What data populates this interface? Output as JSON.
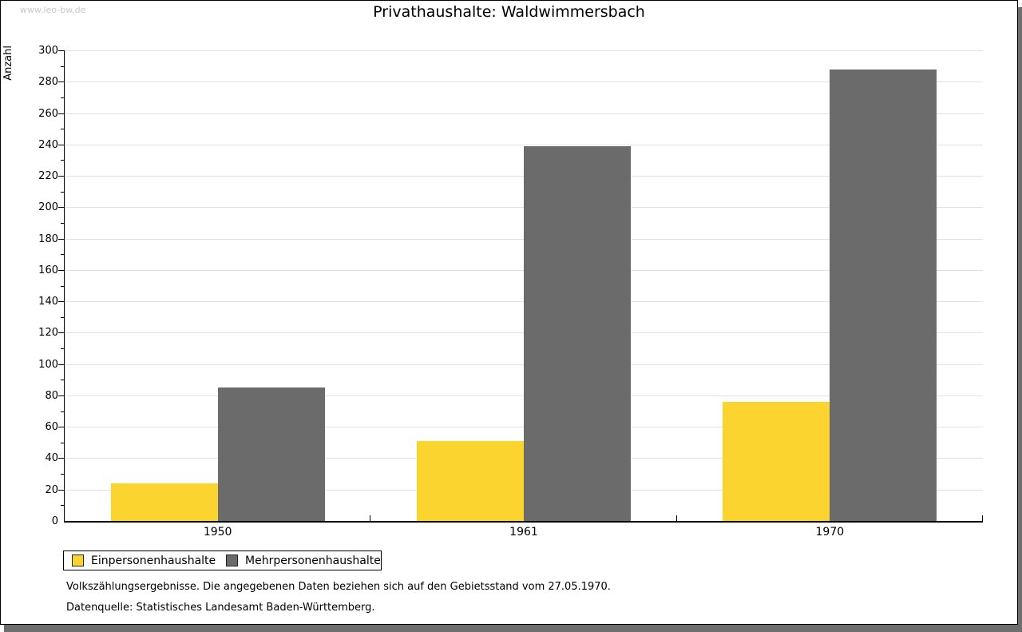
{
  "watermark": "www.leo-bw.de",
  "title": "Privathaushalte: Waldwimmersbach",
  "footnotes": [
    "Volkszählungsergebnisse. Die angegebenen Daten beziehen sich auf den Gebietsstand vom 27.05.1970.",
    "Datenquelle: Statistisches Landesamt Baden-Württemberg."
  ],
  "chart_data": {
    "type": "bar",
    "title": "Privathaushalte: Waldwimmersbach",
    "categories": [
      "1950",
      "1961",
      "1970"
    ],
    "series": [
      {
        "name": "Einpersonenhaushalte",
        "color": "#fcd42f",
        "values": [
          24,
          51,
          76
        ]
      },
      {
        "name": "Mehrpersonenhaushalte",
        "color": "#6b6b6b",
        "values": [
          85,
          239,
          288
        ]
      }
    ],
    "xlabel": "",
    "ylabel": "Anzahl",
    "ylim": [
      0,
      300
    ],
    "y_major_step": 20,
    "y_minor_step": 10,
    "grid": true,
    "gridline_color": "#e2e2e2",
    "legend_position": "bottom-left"
  }
}
